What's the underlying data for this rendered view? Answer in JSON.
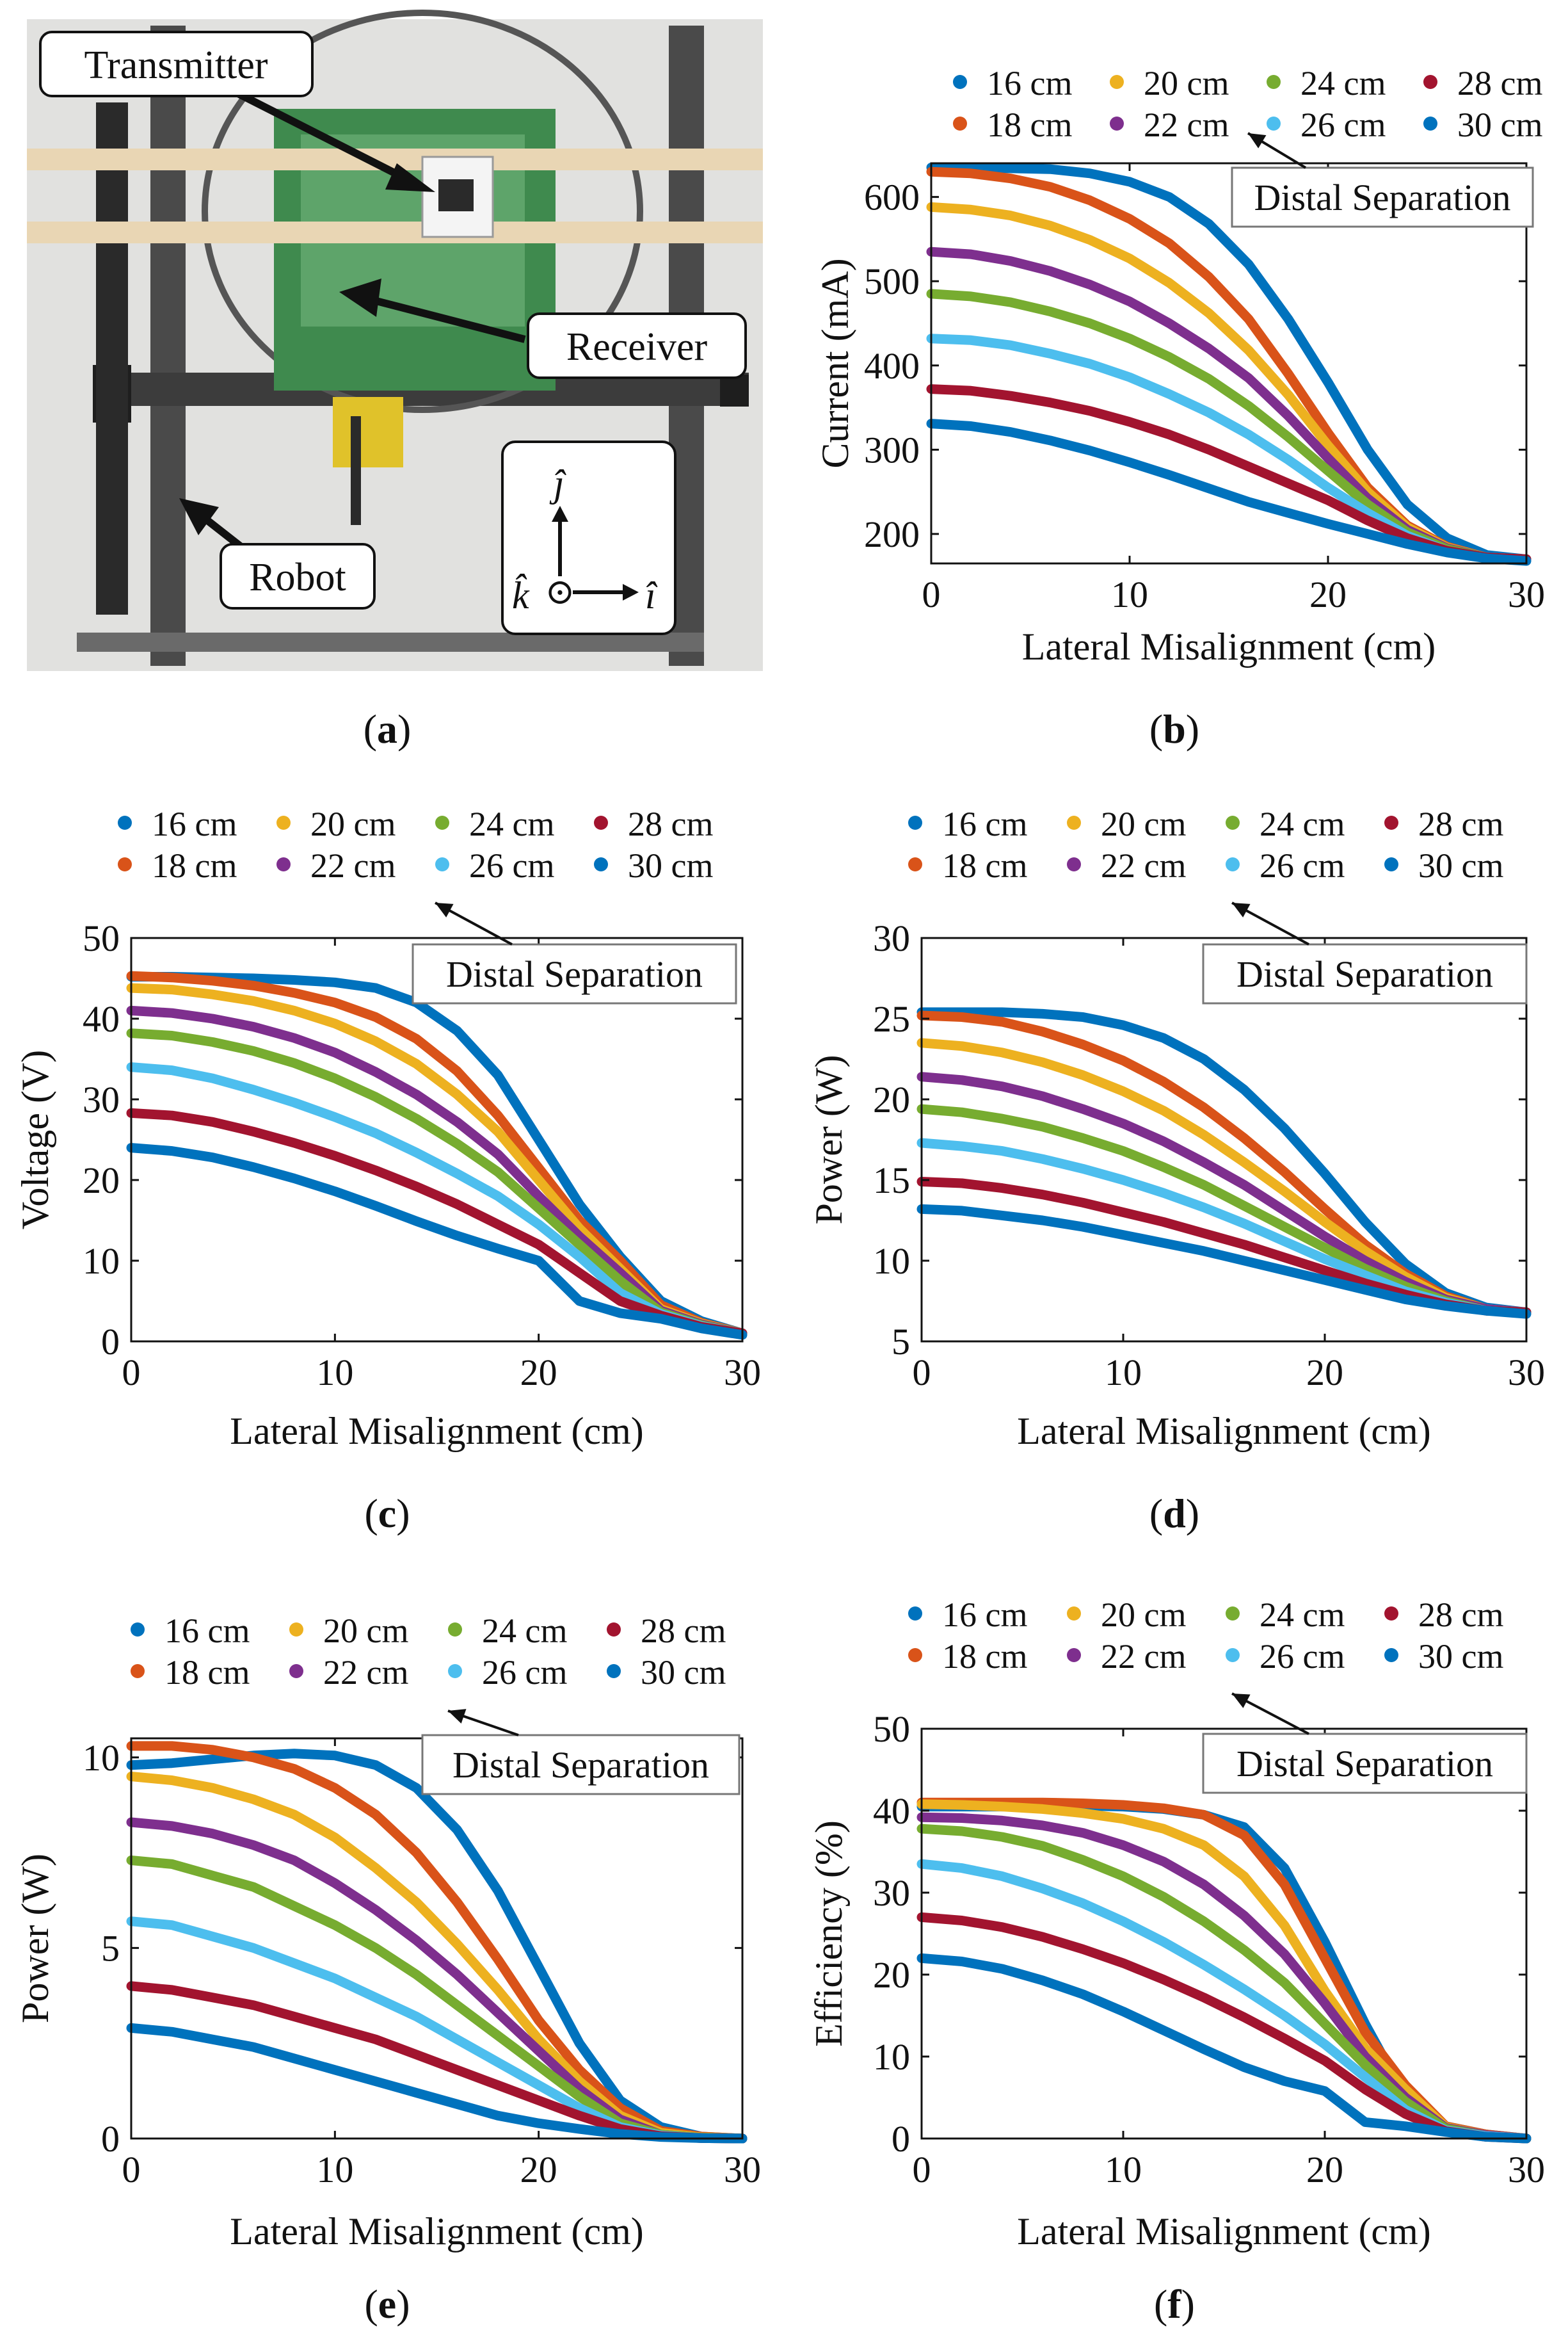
{
  "panel_labels": [
    "a",
    "b",
    "c",
    "d",
    "e",
    "f"
  ],
  "photo": {
    "labels": {
      "transmitter": "Transmitter",
      "receiver": "Receiver",
      "robot": "Robot"
    },
    "axes": {
      "i": "î",
      "j": "ĵ",
      "k": "k̂",
      "out_of_page": "⊙"
    }
  },
  "legend": {
    "entries": [
      "16 cm",
      "18 cm",
      "20 cm",
      "22 cm",
      "24 cm",
      "26 cm",
      "28 cm",
      "30 cm"
    ],
    "colors": [
      "#0072BD",
      "#D95319",
      "#EDB120",
      "#7E2F8E",
      "#77AC30",
      "#4DBEEE",
      "#A2142F",
      "#0072BD"
    ]
  },
  "annotation": "Distal Separation",
  "chart_data": [
    {
      "panel": "b",
      "type": "line",
      "title": "",
      "xlabel": "Lateral Misalignment (cm)",
      "ylabel": "Current (mA)",
      "xlim": [
        0,
        30
      ],
      "ylim": [
        165,
        640
      ],
      "xticks": [
        0,
        10,
        20,
        30
      ],
      "yticks": [
        200,
        300,
        400,
        500,
        600
      ],
      "ytick_labels": [
        "200",
        "300",
        "400",
        "500",
        "600"
      ],
      "x": [
        0,
        2,
        4,
        6,
        8,
        10,
        12,
        14,
        16,
        18,
        20,
        22,
        24,
        26,
        28,
        30
      ],
      "series": [
        {
          "name": "16 cm",
          "values": [
            635,
            635,
            634,
            633,
            628,
            618,
            600,
            568,
            520,
            455,
            380,
            300,
            235,
            195,
            175,
            170
          ]
        },
        {
          "name": "18 cm",
          "values": [
            630,
            628,
            622,
            612,
            596,
            574,
            545,
            505,
            455,
            390,
            320,
            255,
            210,
            185,
            172,
            170
          ]
        },
        {
          "name": "20 cm",
          "values": [
            588,
            585,
            578,
            566,
            549,
            527,
            498,
            462,
            418,
            365,
            305,
            250,
            208,
            184,
            172,
            170
          ]
        },
        {
          "name": "22 cm",
          "values": [
            535,
            532,
            524,
            512,
            496,
            476,
            450,
            420,
            385,
            340,
            290,
            242,
            205,
            183,
            172,
            170
          ]
        },
        {
          "name": "24 cm",
          "values": [
            485,
            482,
            475,
            464,
            450,
            432,
            410,
            384,
            352,
            315,
            275,
            235,
            202,
            182,
            172,
            170
          ]
        },
        {
          "name": "26 cm",
          "values": [
            432,
            430,
            424,
            414,
            402,
            386,
            366,
            344,
            318,
            288,
            255,
            225,
            198,
            180,
            172,
            170
          ]
        },
        {
          "name": "28 cm",
          "values": [
            372,
            370,
            364,
            356,
            346,
            333,
            318,
            300,
            280,
            260,
            240,
            216,
            195,
            180,
            172,
            170
          ]
        },
        {
          "name": "30 cm",
          "values": [
            331,
            328,
            321,
            311,
            299,
            285,
            270,
            254,
            238,
            225,
            212,
            200,
            188,
            178,
            171,
            168
          ]
        }
      ]
    },
    {
      "panel": "c",
      "type": "line",
      "title": "",
      "xlabel": "Lateral Misalignment (cm)",
      "ylabel": "Voltage (V)",
      "xlim": [
        0,
        30
      ],
      "ylim": [
        0,
        50
      ],
      "xticks": [
        0,
        10,
        20,
        30
      ],
      "yticks": [
        0,
        10,
        20,
        30,
        40,
        50
      ],
      "ytick_labels": [
        "0",
        "10",
        "20",
        "30",
        "40",
        "50"
      ],
      "x": [
        0,
        2,
        4,
        6,
        8,
        10,
        12,
        14,
        16,
        18,
        20,
        22,
        24,
        26,
        28,
        30
      ],
      "series": [
        {
          "name": "16 cm",
          "values": [
            45.2,
            45.2,
            45.1,
            45.0,
            44.8,
            44.5,
            43.8,
            42.0,
            38.5,
            33.0,
            25.0,
            17.0,
            10.5,
            5.0,
            2.5,
            1.0
          ]
        },
        {
          "name": "18 cm",
          "values": [
            45.3,
            45.1,
            44.7,
            44.1,
            43.2,
            42.0,
            40.2,
            37.5,
            33.5,
            28.0,
            21.5,
            15.0,
            10.0,
            4.5,
            2.3,
            1.0
          ]
        },
        {
          "name": "20 cm",
          "values": [
            43.8,
            43.6,
            43.0,
            42.2,
            41.0,
            39.4,
            37.2,
            34.4,
            30.6,
            26.0,
            20.0,
            14.0,
            9.0,
            4.0,
            2.2,
            1.0
          ]
        },
        {
          "name": "22 cm",
          "values": [
            41.0,
            40.7,
            40.0,
            39.0,
            37.6,
            35.8,
            33.4,
            30.6,
            27.2,
            23.2,
            18.0,
            13.0,
            8.5,
            3.8,
            2.1,
            1.0
          ]
        },
        {
          "name": "24 cm",
          "values": [
            38.2,
            37.9,
            37.1,
            36.0,
            34.5,
            32.6,
            30.3,
            27.6,
            24.5,
            21.0,
            16.5,
            12.0,
            7.5,
            3.6,
            2.0,
            1.0
          ]
        },
        {
          "name": "26 cm",
          "values": [
            34.0,
            33.6,
            32.6,
            31.2,
            29.6,
            27.8,
            25.8,
            23.4,
            20.8,
            18.0,
            14.5,
            10.5,
            6.0,
            3.4,
            1.9,
            1.0
          ]
        },
        {
          "name": "28 cm",
          "values": [
            28.3,
            28.0,
            27.2,
            26.0,
            24.6,
            23.0,
            21.2,
            19.2,
            17.0,
            14.5,
            12.0,
            8.5,
            5.0,
            3.2,
            1.8,
            1.0
          ]
        },
        {
          "name": "30 cm",
          "values": [
            24.0,
            23.6,
            22.8,
            21.6,
            20.2,
            18.6,
            16.8,
            14.9,
            13.1,
            11.5,
            10.0,
            5.0,
            3.5,
            2.8,
            1.6,
            0.8
          ]
        }
      ]
    },
    {
      "panel": "d",
      "type": "line",
      "title": "",
      "xlabel": "Lateral Misalignment (cm)",
      "ylabel": "Power (W)",
      "xlim": [
        0,
        30
      ],
      "ylim": [
        5,
        30
      ],
      "xticks": [
        0,
        10,
        20,
        30
      ],
      "yticks": [
        5,
        10,
        15,
        20,
        25,
        30
      ],
      "ytick_labels": [
        "5",
        "10",
        "15",
        "20",
        "25",
        "30"
      ],
      "x": [
        0,
        2,
        4,
        6,
        8,
        10,
        12,
        14,
        16,
        18,
        20,
        22,
        24,
        26,
        28,
        30
      ],
      "series": [
        {
          "name": "16 cm",
          "values": [
            25.4,
            25.4,
            25.4,
            25.3,
            25.1,
            24.6,
            23.8,
            22.5,
            20.6,
            18.2,
            15.4,
            12.4,
            9.8,
            8.0,
            7.1,
            6.8
          ]
        },
        {
          "name": "18 cm",
          "values": [
            25.2,
            25.1,
            24.8,
            24.2,
            23.4,
            22.4,
            21.1,
            19.5,
            17.6,
            15.5,
            13.2,
            11.0,
            9.2,
            7.8,
            7.0,
            6.8
          ]
        },
        {
          "name": "20 cm",
          "values": [
            23.5,
            23.3,
            22.9,
            22.3,
            21.5,
            20.5,
            19.3,
            17.8,
            16.1,
            14.3,
            12.4,
            10.6,
            9.0,
            7.7,
            7.0,
            6.8
          ]
        },
        {
          "name": "22 cm",
          "values": [
            21.4,
            21.2,
            20.8,
            20.2,
            19.4,
            18.5,
            17.4,
            16.1,
            14.7,
            13.1,
            11.5,
            10.0,
            8.7,
            7.6,
            7.0,
            6.8
          ]
        },
        {
          "name": "24 cm",
          "values": [
            19.4,
            19.2,
            18.8,
            18.3,
            17.6,
            16.8,
            15.8,
            14.7,
            13.4,
            12.1,
            10.8,
            9.5,
            8.4,
            7.5,
            6.9,
            6.8
          ]
        },
        {
          "name": "26 cm",
          "values": [
            17.3,
            17.1,
            16.8,
            16.3,
            15.7,
            15.0,
            14.2,
            13.3,
            12.3,
            11.2,
            10.1,
            9.1,
            8.1,
            7.4,
            6.9,
            6.8
          ]
        },
        {
          "name": "28 cm",
          "values": [
            14.9,
            14.8,
            14.5,
            14.1,
            13.6,
            13.0,
            12.4,
            11.7,
            11.0,
            10.2,
            9.4,
            8.6,
            7.9,
            7.3,
            6.9,
            6.8
          ]
        },
        {
          "name": "30 cm",
          "values": [
            13.2,
            13.1,
            12.8,
            12.5,
            12.1,
            11.6,
            11.1,
            10.6,
            10.0,
            9.4,
            8.8,
            8.2,
            7.6,
            7.2,
            6.9,
            6.7
          ]
        }
      ]
    },
    {
      "panel": "e",
      "type": "line",
      "title": "",
      "xlabel": "Lateral Misalignment (cm)",
      "ylabel": "Power (W)",
      "xlim": [
        0,
        30
      ],
      "ylim": [
        0,
        10.5
      ],
      "xticks": [
        0,
        10,
        20,
        30
      ],
      "yticks": [
        0,
        5,
        10
      ],
      "ytick_labels": [
        "0",
        "5",
        "10"
      ],
      "x": [
        0,
        2,
        4,
        6,
        8,
        10,
        12,
        14,
        16,
        18,
        20,
        22,
        24,
        26,
        28,
        30
      ],
      "series": [
        {
          "name": "16 cm",
          "values": [
            9.8,
            9.85,
            9.95,
            10.05,
            10.1,
            10.05,
            9.8,
            9.2,
            8.1,
            6.5,
            4.5,
            2.5,
            1.0,
            0.3,
            0.05,
            0
          ]
        },
        {
          "name": "18 cm",
          "values": [
            10.3,
            10.3,
            10.2,
            10.0,
            9.7,
            9.2,
            8.5,
            7.5,
            6.2,
            4.7,
            3.1,
            1.8,
            0.8,
            0.2,
            0.05,
            0
          ]
        },
        {
          "name": "20 cm",
          "values": [
            9.5,
            9.4,
            9.2,
            8.9,
            8.5,
            7.9,
            7.1,
            6.2,
            5.1,
            3.9,
            2.6,
            1.5,
            0.6,
            0.15,
            0.03,
            0
          ]
        },
        {
          "name": "22 cm",
          "values": [
            8.3,
            8.2,
            8.0,
            7.7,
            7.3,
            6.7,
            6.0,
            5.2,
            4.3,
            3.3,
            2.3,
            1.3,
            0.5,
            0.1,
            0.02,
            0
          ]
        },
        {
          "name": "24 cm",
          "values": [
            7.3,
            7.2,
            6.9,
            6.6,
            6.1,
            5.6,
            5.0,
            4.3,
            3.5,
            2.7,
            1.9,
            1.1,
            0.4,
            0.1,
            0.02,
            0
          ]
        },
        {
          "name": "26 cm",
          "values": [
            5.7,
            5.6,
            5.3,
            5.0,
            4.6,
            4.2,
            3.7,
            3.2,
            2.6,
            2.0,
            1.4,
            0.8,
            0.3,
            0.08,
            0.01,
            0
          ]
        },
        {
          "name": "28 cm",
          "values": [
            4.0,
            3.9,
            3.7,
            3.5,
            3.2,
            2.9,
            2.6,
            2.2,
            1.8,
            1.4,
            1.0,
            0.6,
            0.25,
            0.06,
            0.01,
            0
          ]
        },
        {
          "name": "30 cm",
          "values": [
            2.9,
            2.8,
            2.6,
            2.4,
            2.1,
            1.8,
            1.5,
            1.2,
            0.9,
            0.6,
            0.4,
            0.25,
            0.12,
            0.04,
            0.01,
            0
          ]
        }
      ]
    },
    {
      "panel": "f",
      "type": "line",
      "title": "",
      "xlabel": "Lateral Misalignment (cm)",
      "ylabel": "Efficiency (%)",
      "xlim": [
        0,
        30
      ],
      "ylim": [
        0,
        50
      ],
      "xticks": [
        0,
        10,
        20,
        30
      ],
      "yticks": [
        0,
        10,
        20,
        30,
        40,
        50
      ],
      "ytick_labels": [
        "0",
        "10",
        "20",
        "30",
        "40",
        "50"
      ],
      "x": [
        0,
        2,
        4,
        6,
        8,
        10,
        12,
        14,
        16,
        18,
        20,
        22,
        24,
        26,
        28,
        30
      ],
      "series": [
        {
          "name": "16 cm",
          "values": [
            40.5,
            40.5,
            40.5,
            40.6,
            40.6,
            40.5,
            40.2,
            39.5,
            38.0,
            33.0,
            24.0,
            14.0,
            5.0,
            1.5,
            0.5,
            0
          ]
        },
        {
          "name": "18 cm",
          "values": [
            41.0,
            41.0,
            41.0,
            41.0,
            40.9,
            40.7,
            40.3,
            39.5,
            37.0,
            31.0,
            22.0,
            13.0,
            6.5,
            1.5,
            0.5,
            0
          ]
        },
        {
          "name": "20 cm",
          "values": [
            40.8,
            40.7,
            40.5,
            40.2,
            39.7,
            39.0,
            37.8,
            35.8,
            32.0,
            26.0,
            18.0,
            11.0,
            6.0,
            1.4,
            0.4,
            0
          ]
        },
        {
          "name": "22 cm",
          "values": [
            39.2,
            39.1,
            38.8,
            38.2,
            37.3,
            35.8,
            33.8,
            31.0,
            27.2,
            22.5,
            16.5,
            10.0,
            5.0,
            1.3,
            0.4,
            0
          ]
        },
        {
          "name": "24 cm",
          "values": [
            37.8,
            37.5,
            36.8,
            35.7,
            34.0,
            32.0,
            29.5,
            26.5,
            23.0,
            19.0,
            14.0,
            9.0,
            4.5,
            1.2,
            0.3,
            0
          ]
        },
        {
          "name": "26 cm",
          "values": [
            33.5,
            33.0,
            32.0,
            30.5,
            28.7,
            26.5,
            24.0,
            21.2,
            18.2,
            15.0,
            11.5,
            7.5,
            3.5,
            1.0,
            0.3,
            0
          ]
        },
        {
          "name": "28 cm",
          "values": [
            27.0,
            26.6,
            25.8,
            24.6,
            23.1,
            21.4,
            19.4,
            17.2,
            14.8,
            12.2,
            9.5,
            6.0,
            3.0,
            0.9,
            0.2,
            0
          ]
        },
        {
          "name": "30 cm",
          "values": [
            22.0,
            21.6,
            20.7,
            19.3,
            17.6,
            15.5,
            13.2,
            10.9,
            8.7,
            7.0,
            5.8,
            2.0,
            1.5,
            0.8,
            0.2,
            0
          ]
        }
      ]
    }
  ]
}
